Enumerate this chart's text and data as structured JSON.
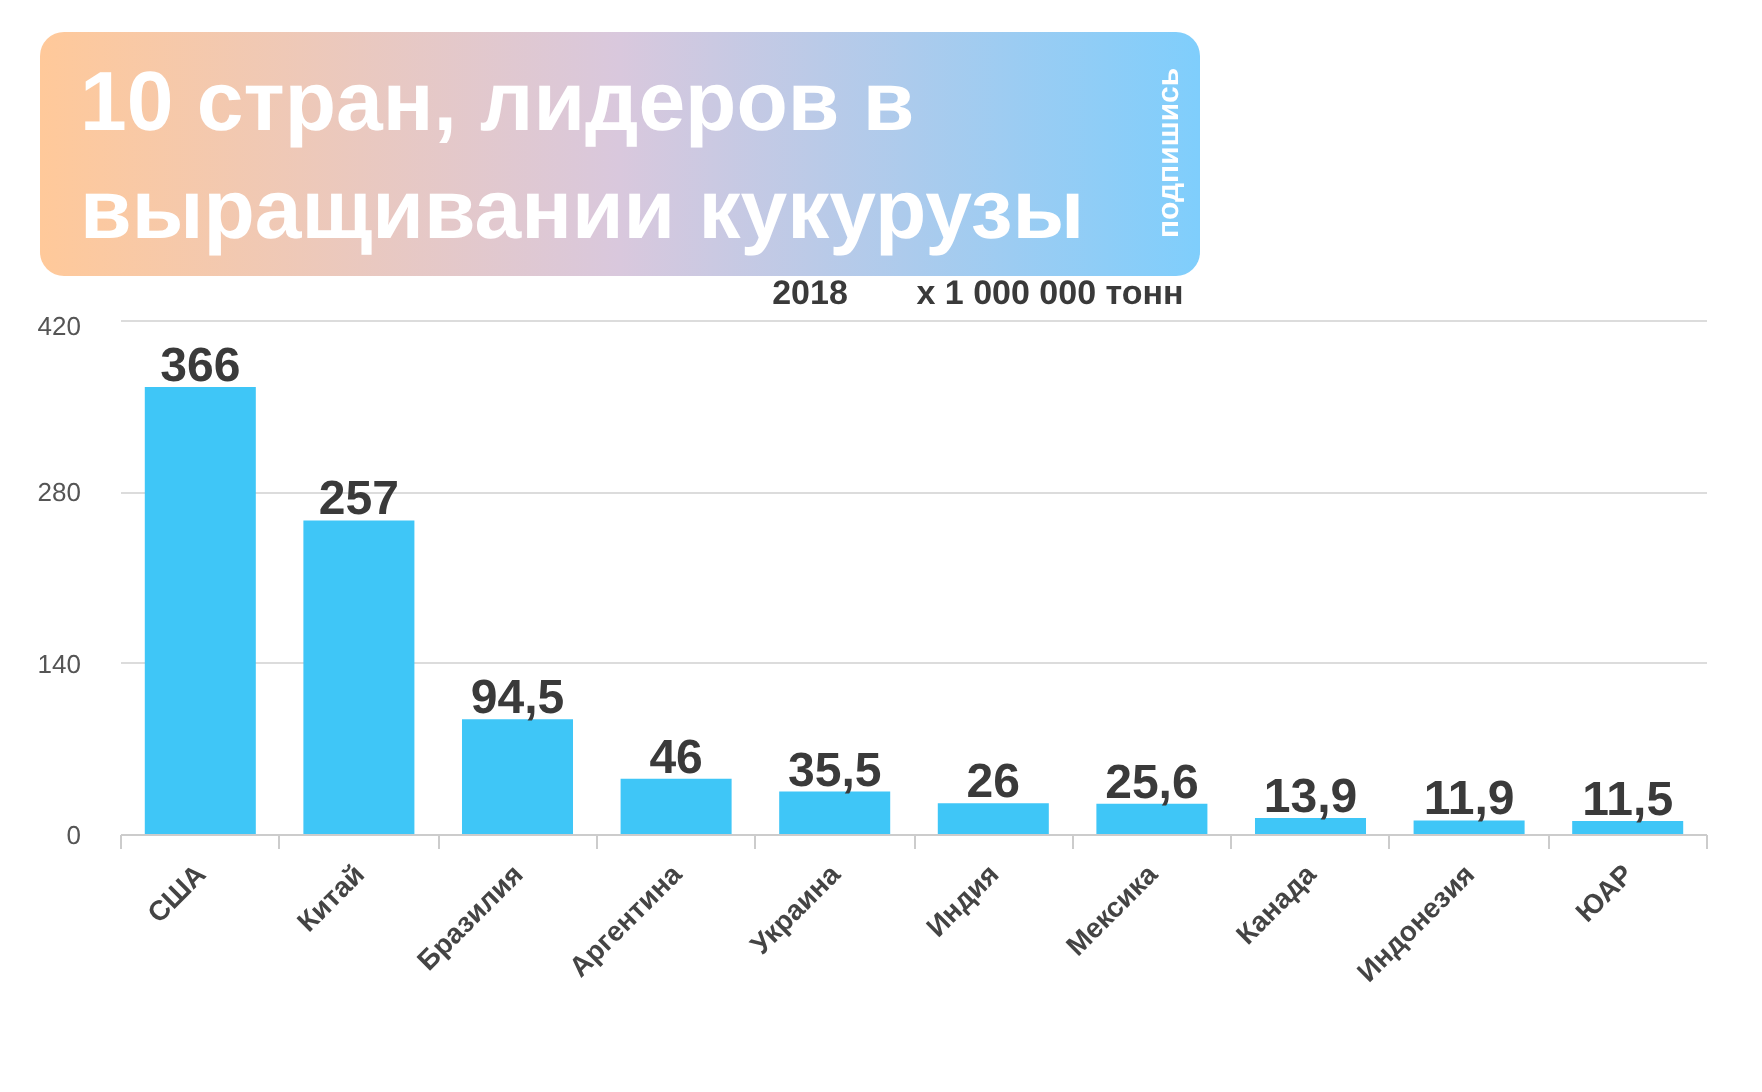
{
  "chart_data": {
    "type": "bar",
    "title": "10 стран, лидеров в выращивании кукурузы",
    "subtitle": "2018",
    "ylabel": "x 1 000 000 тонн",
    "annotations": [
      "подпишись"
    ],
    "categories": [
      "США",
      "Китай",
      "Бразилия",
      "Аргентина",
      "Украина",
      "Индия",
      "Мексика",
      "Канада",
      "Индонезия",
      "ЮАР"
    ],
    "values": [
      366,
      257,
      94.5,
      46,
      35.5,
      26,
      25.6,
      13.9,
      11.9,
      11.5
    ],
    "value_labels": [
      "366",
      "257",
      "94,5",
      "46",
      "35,5",
      "26",
      "25,6",
      "13,9",
      "11,9",
      "11,5"
    ],
    "color": "#3fc6f7",
    "ylim": [
      0,
      420
    ],
    "yticks": [
      0,
      140,
      280,
      420
    ],
    "grid": "y"
  }
}
